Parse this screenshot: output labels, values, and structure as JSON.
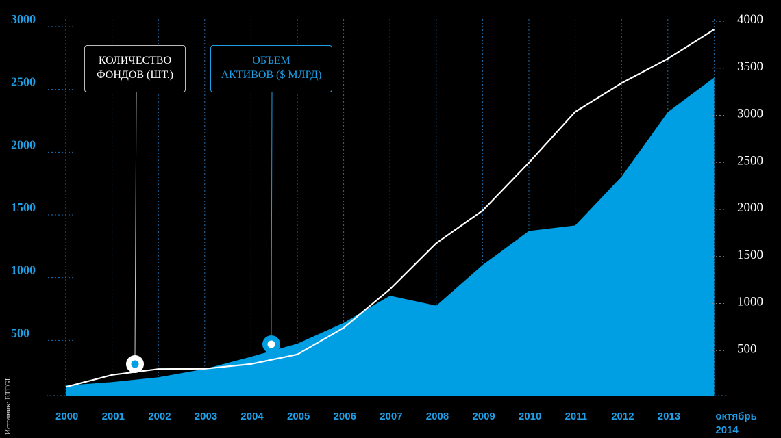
{
  "chart_data": {
    "type": "area",
    "categories": [
      "2000",
      "2001",
      "2002",
      "2003",
      "2004",
      "2005",
      "2006",
      "2007",
      "2008",
      "2009",
      "2010",
      "2011",
      "2012",
      "2013",
      "октябрь 2014"
    ],
    "x_label_lines": [
      [
        "2000"
      ],
      [
        "2001"
      ],
      [
        "2002"
      ],
      [
        "2003"
      ],
      [
        "2004"
      ],
      [
        "2005"
      ],
      [
        "2006"
      ],
      [
        "2007"
      ],
      [
        "2008"
      ],
      [
        "2009"
      ],
      [
        "2010"
      ],
      [
        "2011"
      ],
      [
        "2012"
      ],
      [
        "2013"
      ],
      [
        "октябрь",
        "2014"
      ]
    ],
    "series": [
      {
        "name": "ОБЪЕМ АКТИВОВ ($ МЛРД)",
        "type": "area",
        "axis": "left",
        "color": "#009ee3",
        "values": [
          80,
          108,
          146,
          212,
          310,
          414,
          580,
          796,
          716,
          1040,
          1312,
          1356,
          1745,
          2260,
          2534
        ]
      },
      {
        "name": "КОЛИЧЕСТВО ФОНДОВ (ШТ.)",
        "type": "line",
        "axis": "right",
        "color": "#ffffff",
        "values": [
          92,
          220,
          282,
          285,
          335,
          438,
          720,
          1130,
          1620,
          1965,
          2475,
          3015,
          3320,
          3580,
          3890
        ]
      }
    ],
    "y_left": {
      "ticks": [
        500,
        1000,
        1500,
        2000,
        2500,
        3000
      ],
      "lim": [
        0,
        3000
      ]
    },
    "y_right": {
      "ticks": [
        500,
        1000,
        1500,
        2000,
        2500,
        3000,
        3500,
        4000
      ],
      "lim": [
        0,
        4000
      ]
    },
    "grid": true,
    "legend_funds_lines": [
      "КОЛИЧЕСТВО",
      "ФОНДОВ (ШТ.)"
    ],
    "legend_assets_lines": [
      "ОБЪЕМ",
      "АКТИВОВ ($ МЛРД)"
    ],
    "source": "Источник: ETFGI."
  },
  "colors": {
    "background": "#000000",
    "assets": "#009ee3",
    "axis_text": "#1e9fe6",
    "funds_line": "#ffffff"
  }
}
